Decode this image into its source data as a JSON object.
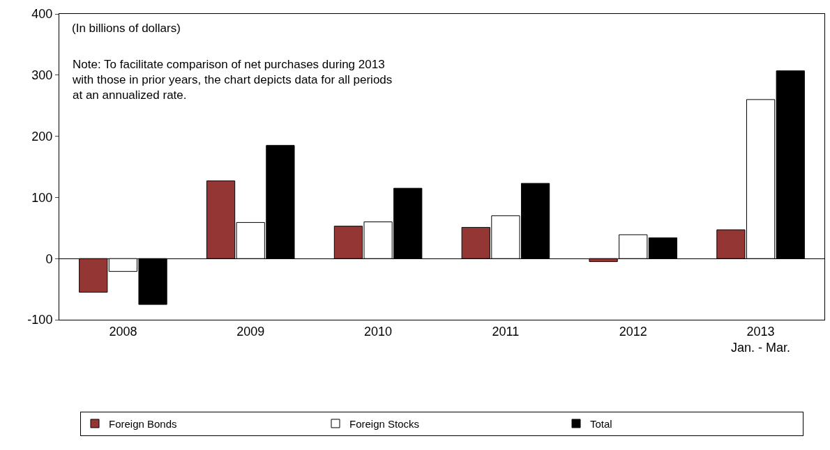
{
  "chart_data": {
    "type": "bar",
    "categories": [
      "2008",
      "2009",
      "2010",
      "2011",
      "2012",
      "2013\nJan. - Mar."
    ],
    "series": [
      {
        "name": "Foreign Bonds",
        "color": "#943634",
        "values": [
          -55,
          127,
          53,
          51,
          -5,
          47
        ]
      },
      {
        "name": "Foreign Stocks",
        "color": "#ffffff",
        "values": [
          -21,
          59,
          60,
          70,
          39,
          260
        ]
      },
      {
        "name": "Total",
        "color": "#000000",
        "values": [
          -75,
          185,
          115,
          123,
          34,
          307
        ]
      }
    ],
    "ylim": [
      -100,
      400
    ],
    "yticks": [
      -100,
      0,
      100,
      200,
      300,
      400
    ],
    "annotations": [
      "(In billions of dollars)",
      "Note: To facilitate comparison of net purchases during 2013\nwith those in prior years, the chart depicts data for all periods\nat an annualized rate."
    ],
    "legend": "bottom"
  }
}
